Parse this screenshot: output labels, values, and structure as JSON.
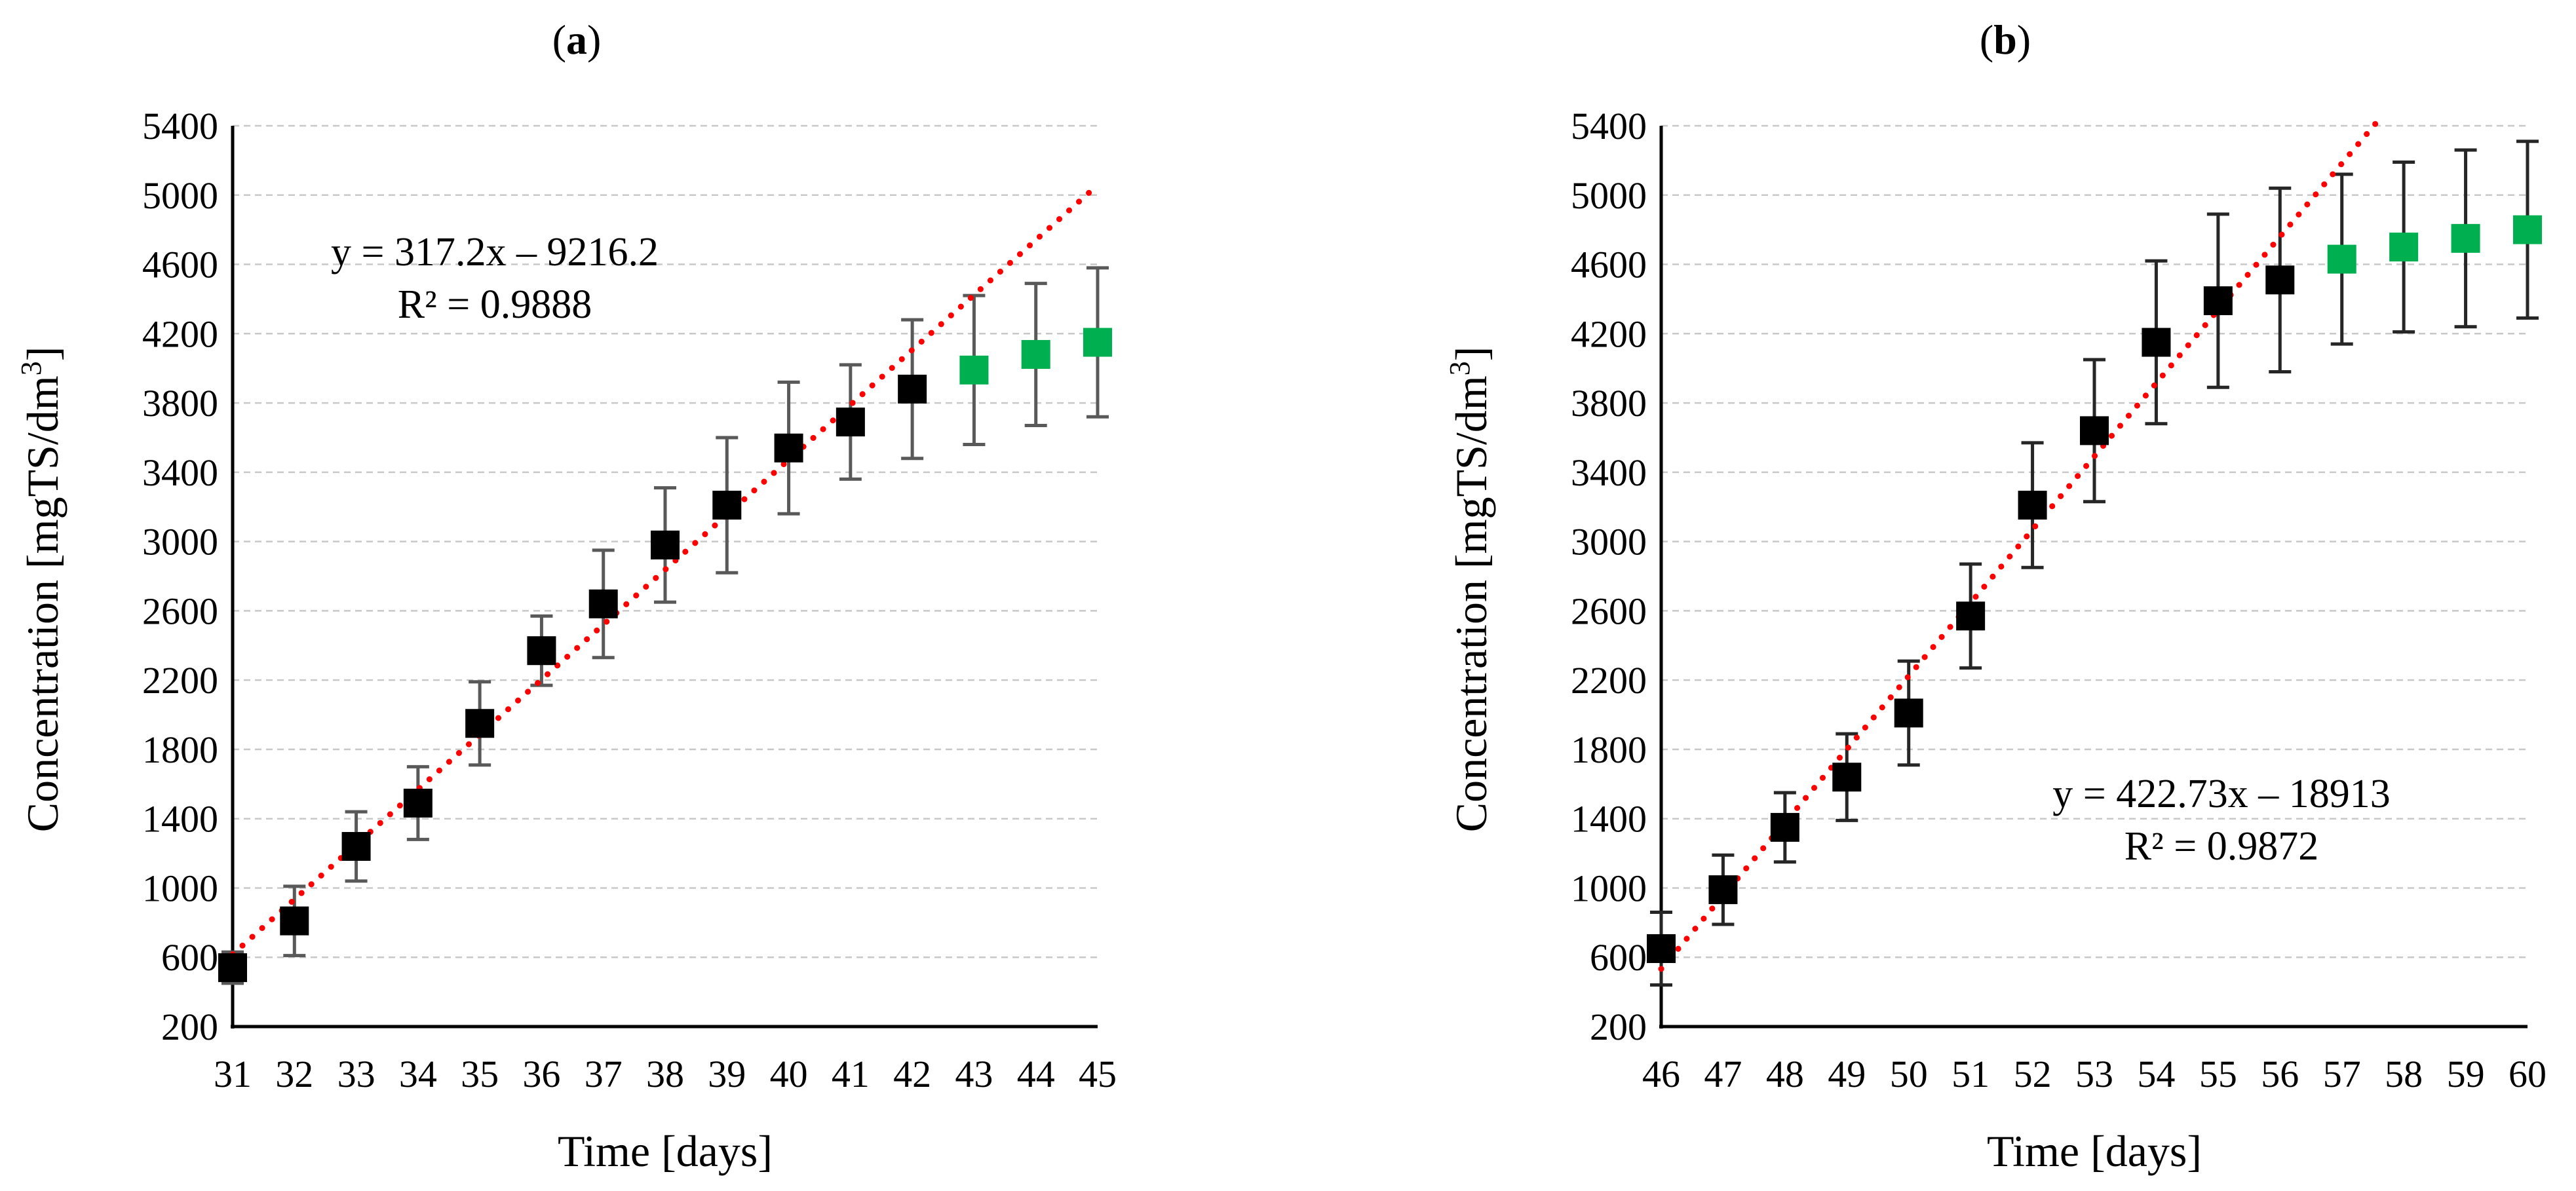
{
  "colors": {
    "measured_marker": "#000000",
    "predicted_marker": "#00b050",
    "trendline": "#ff0000",
    "error_bar_a": "#595959",
    "error_bar_b": "#262626"
  },
  "chart_data": [
    {
      "panel_label": "a",
      "type": "scatter",
      "title": "",
      "xlabel": "Time [days]",
      "ylabel": "Concentration [mgTS/dm",
      "ylabel_sup": "3",
      "ylabel_end": "]",
      "xlim": [
        31,
        45
      ],
      "ylim": [
        200,
        5400
      ],
      "x_ticks": [
        "31",
        "32",
        "33",
        "34",
        "35",
        "36",
        "37",
        "38",
        "39",
        "40",
        "41",
        "42",
        "43",
        "44",
        "45"
      ],
      "y_ticks": [
        "200",
        "600",
        "1000",
        "1400",
        "1800",
        "2200",
        "2600",
        "3000",
        "3400",
        "3800",
        "4200",
        "4600",
        "5000",
        "5400"
      ],
      "grid": true,
      "series": [
        {
          "x": [
            31,
            32,
            33,
            34,
            35,
            36,
            37,
            38,
            39,
            40,
            41,
            42
          ],
          "y": [
            540,
            810,
            1240,
            1490,
            1950,
            2370,
            2640,
            2980,
            3210,
            3540,
            3690,
            3880
          ],
          "err_low": [
            90,
            200,
            200,
            210,
            240,
            200,
            310,
            330,
            390,
            380,
            330,
            400
          ],
          "err_high": [
            90,
            200,
            200,
            210,
            240,
            200,
            310,
            330,
            390,
            380,
            330,
            400
          ],
          "color": "#000000",
          "marker": "square"
        },
        {
          "x": [
            43,
            44,
            45
          ],
          "y": [
            3990,
            4080,
            4150
          ],
          "err_low": [
            430,
            410,
            430
          ],
          "err_high": [
            430,
            410,
            430
          ],
          "color": "#00b050",
          "marker": "square"
        }
      ],
      "trendline": {
        "slope": 317.2,
        "intercept": -9216.2,
        "x_range": [
          31,
          45
        ],
        "equation": "y = 317.2x – 9216.2",
        "r2": "R² = 0.9888"
      }
    },
    {
      "panel_label": "b",
      "type": "scatter",
      "title": "",
      "xlabel": "Time [days]",
      "ylabel": "Concentration [mgTS/dm",
      "ylabel_sup": "3",
      "ylabel_end": "]",
      "xlim": [
        46,
        60
      ],
      "ylim": [
        200,
        5400
      ],
      "x_ticks": [
        "46",
        "47",
        "48",
        "49",
        "50",
        "51",
        "52",
        "53",
        "54",
        "55",
        "56",
        "57",
        "58",
        "59",
        "60"
      ],
      "y_ticks": [
        "200",
        "600",
        "1000",
        "1400",
        "1800",
        "2200",
        "2600",
        "3000",
        "3400",
        "3800",
        "4200",
        "4600",
        "5000",
        "5400"
      ],
      "grid": true,
      "series": [
        {
          "x": [
            46,
            47,
            48,
            49,
            50,
            51,
            52,
            53,
            54,
            55,
            56
          ],
          "y": [
            650,
            990,
            1350,
            1640,
            2010,
            2570,
            3210,
            3640,
            4150,
            4390,
            4510
          ],
          "err_low": [
            210,
            200,
            200,
            250,
            300,
            300,
            360,
            410,
            470,
            500,
            530
          ],
          "err_high": [
            210,
            200,
            200,
            250,
            300,
            300,
            360,
            410,
            470,
            500,
            530
          ],
          "color": "#000000",
          "marker": "square"
        },
        {
          "x": [
            57,
            58,
            59,
            60
          ],
          "y": [
            4630,
            4700,
            4750,
            4800
          ],
          "err_low": [
            490,
            490,
            510,
            510
          ],
          "err_high": [
            490,
            490,
            510,
            510
          ],
          "color": "#00b050",
          "marker": "square"
        }
      ],
      "trendline": {
        "slope": 422.73,
        "intercept": -18913,
        "x_range": [
          46,
          60
        ],
        "equation": "y = 422.73x – 18913",
        "r2": "R² = 0.9872"
      }
    }
  ]
}
